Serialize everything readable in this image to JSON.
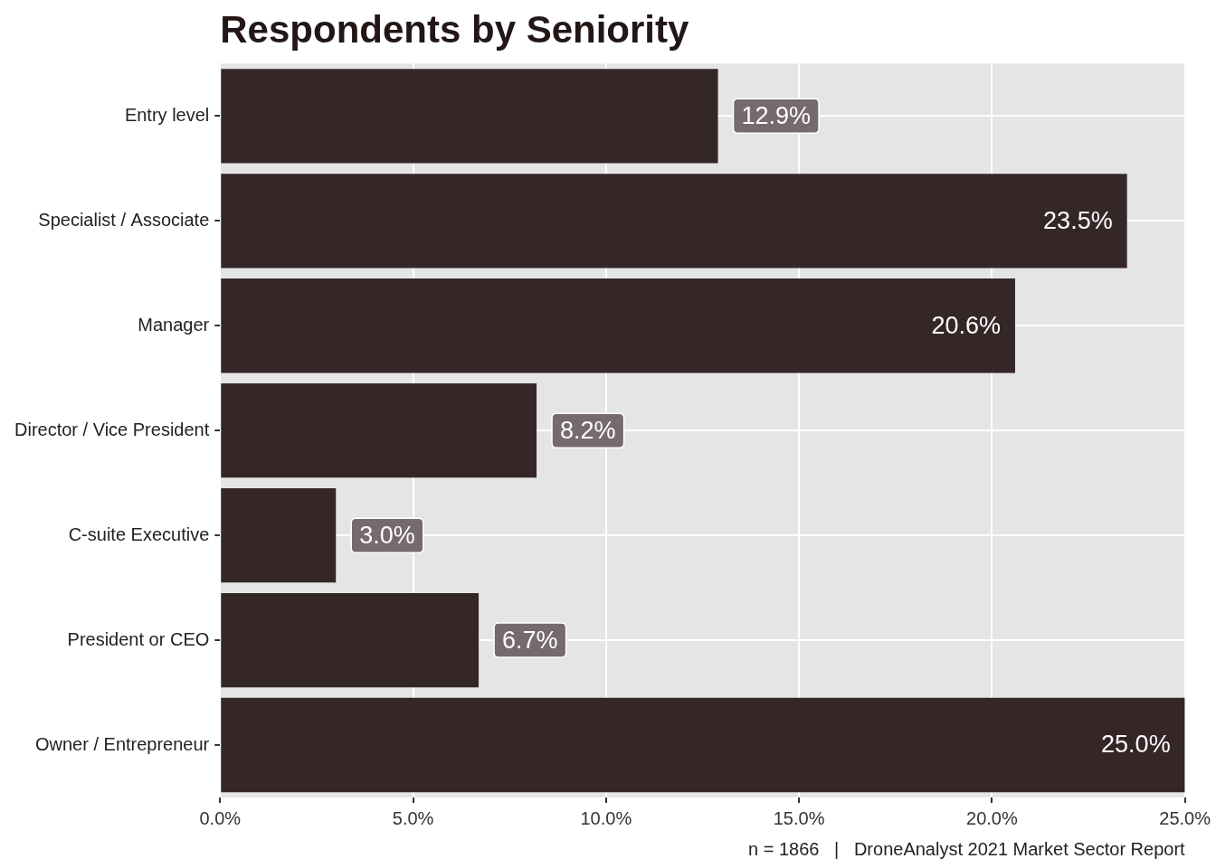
{
  "chart_data": {
    "type": "bar",
    "orientation": "horizontal",
    "title": "Respondents by Seniority",
    "caption": "n = 1866   |   DroneAnalyst 2021 Market Sector Report",
    "categories": [
      "Entry level",
      "Specialist / Associate",
      "Manager",
      "Director / Vice President",
      "C-suite Executive",
      "President or CEO",
      "Owner / Entrepreneur"
    ],
    "values": [
      12.9,
      23.5,
      20.6,
      8.2,
      3.0,
      6.7,
      25.0
    ],
    "value_labels": [
      "12.9%",
      "23.5%",
      "20.6%",
      "8.2%",
      "3.0%",
      "6.7%",
      "25.0%"
    ],
    "color": "#352728",
    "xlim": [
      0,
      25
    ],
    "xticks": [
      {
        "value": 0,
        "label": "0.0%"
      },
      {
        "value": 5,
        "label": "5.0%"
      },
      {
        "value": 10,
        "label": "10.0%"
      },
      {
        "value": 15,
        "label": "15.0%"
      },
      {
        "value": 20,
        "label": "20.0%"
      },
      {
        "value": 25,
        "label": "25.0%"
      }
    ],
    "grid": true,
    "data_labels": true
  }
}
